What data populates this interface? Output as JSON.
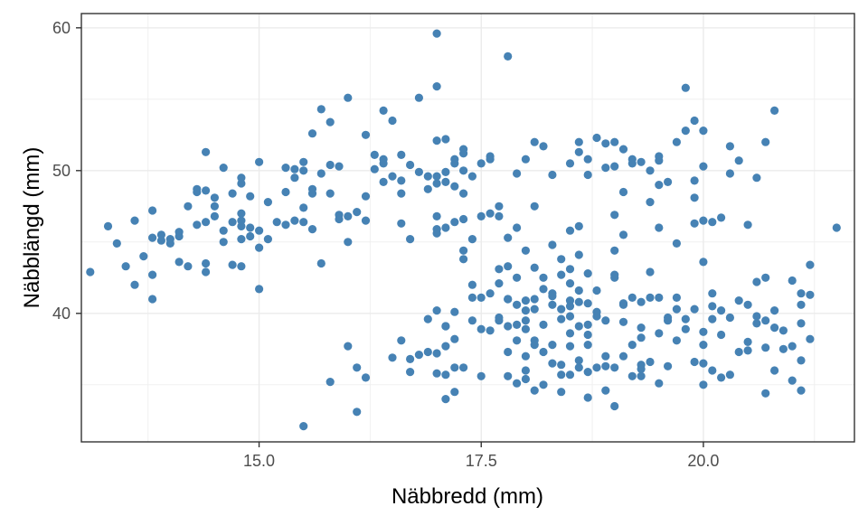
{
  "chart_data": {
    "type": "scatter",
    "xlabel": "Näbbredd (mm)",
    "ylabel": "Näbblängd (mm)",
    "xlim": [
      13.0,
      21.7
    ],
    "ylim": [
      31.0,
      61.0
    ],
    "x_ticks": [
      15.0,
      17.5,
      20.0
    ],
    "x_tick_labels": [
      "15.0",
      "17.5",
      "20.0"
    ],
    "y_ticks": [
      40,
      50,
      60
    ],
    "y_tick_labels": [
      "40",
      "50",
      "60"
    ],
    "grid": true,
    "legend": "none",
    "point_color": "#4682b4",
    "points": [
      [
        13.1,
        42.9
      ],
      [
        13.3,
        46.1
      ],
      [
        13.4,
        44.9
      ],
      [
        13.5,
        43.3
      ],
      [
        13.6,
        42.0
      ],
      [
        13.6,
        46.5
      ],
      [
        13.7,
        44.0
      ],
      [
        13.8,
        41.0
      ],
      [
        13.8,
        42.7
      ],
      [
        13.8,
        45.3
      ],
      [
        13.8,
        47.2
      ],
      [
        13.9,
        45.1
      ],
      [
        13.9,
        45.5
      ],
      [
        14.0,
        44.9
      ],
      [
        14.0,
        45.2
      ],
      [
        14.1,
        43.6
      ],
      [
        14.1,
        45.4
      ],
      [
        14.1,
        45.7
      ],
      [
        14.2,
        43.3
      ],
      [
        14.2,
        47.5
      ],
      [
        14.3,
        46.2
      ],
      [
        14.3,
        48.5
      ],
      [
        14.3,
        48.7
      ],
      [
        14.4,
        42.9
      ],
      [
        14.4,
        43.5
      ],
      [
        14.4,
        46.4
      ],
      [
        14.4,
        51.3
      ],
      [
        14.5,
        46.8
      ],
      [
        14.5,
        47.5
      ],
      [
        14.5,
        48.1
      ],
      [
        14.6,
        45.0
      ],
      [
        14.6,
        45.8
      ],
      [
        14.6,
        50.2
      ],
      [
        14.7,
        43.4
      ],
      [
        14.7,
        46.4
      ],
      [
        14.7,
        48.4
      ],
      [
        14.8,
        43.3
      ],
      [
        14.8,
        45.2
      ],
      [
        14.8,
        46.1
      ],
      [
        14.8,
        46.5
      ],
      [
        14.8,
        47.0
      ],
      [
        14.8,
        49.1
      ],
      [
        14.9,
        45.4
      ],
      [
        14.9,
        46.0
      ],
      [
        14.9,
        48.2
      ],
      [
        15.0,
        41.7
      ],
      [
        15.0,
        44.6
      ],
      [
        15.0,
        45.8
      ],
      [
        15.1,
        45.2
      ],
      [
        15.1,
        47.8
      ],
      [
        15.2,
        46.4
      ],
      [
        15.3,
        46.2
      ],
      [
        15.3,
        48.5
      ],
      [
        15.4,
        46.5
      ],
      [
        15.4,
        49.5
      ],
      [
        15.4,
        50.1
      ],
      [
        15.5,
        46.4
      ],
      [
        15.5,
        47.4
      ],
      [
        15.5,
        50.0
      ],
      [
        15.5,
        50.6
      ],
      [
        15.6,
        45.9
      ],
      [
        15.6,
        48.4
      ],
      [
        15.6,
        48.7
      ],
      [
        15.7,
        43.5
      ],
      [
        15.7,
        49.8
      ],
      [
        15.8,
        48.4
      ],
      [
        15.8,
        50.4
      ],
      [
        15.9,
        46.6
      ],
      [
        15.9,
        46.9
      ],
      [
        15.9,
        50.3
      ],
      [
        16.0,
        45.0
      ],
      [
        16.0,
        46.8
      ],
      [
        16.1,
        47.1
      ],
      [
        16.2,
        46.5
      ],
      [
        16.2,
        48.2
      ],
      [
        16.2,
        52.5
      ],
      [
        16.3,
        50.1
      ],
      [
        16.4,
        49.2
      ],
      [
        16.4,
        50.5
      ],
      [
        16.4,
        50.8
      ],
      [
        16.4,
        54.2
      ],
      [
        16.5,
        49.6
      ],
      [
        16.5,
        53.5
      ],
      [
        16.6,
        46.3
      ],
      [
        16.6,
        48.4
      ],
      [
        16.6,
        49.3
      ],
      [
        16.7,
        45.2
      ],
      [
        16.7,
        50.4
      ],
      [
        16.8,
        49.9
      ],
      [
        16.8,
        55.1
      ],
      [
        16.9,
        48.7
      ],
      [
        16.9,
        49.6
      ],
      [
        17.0,
        46.8
      ],
      [
        17.0,
        49.1
      ],
      [
        17.0,
        49.6
      ],
      [
        17.1,
        49.2
      ],
      [
        17.1,
        49.9
      ],
      [
        17.2,
        48.9
      ],
      [
        17.3,
        48.4
      ],
      [
        17.3,
        51.2
      ],
      [
        17.3,
        51.5
      ],
      [
        17.4,
        45.2
      ],
      [
        17.5,
        46.8
      ],
      [
        17.6,
        47.0
      ],
      [
        17.6,
        51.0
      ],
      [
        17.7,
        46.8
      ],
      [
        17.7,
        47.5
      ],
      [
        17.7,
        42.1
      ],
      [
        17.8,
        43.3
      ],
      [
        17.8,
        41.0
      ],
      [
        17.9,
        42.5
      ],
      [
        17.9,
        49.8
      ],
      [
        18.0,
        36.0
      ],
      [
        18.0,
        37.0
      ],
      [
        18.0,
        39.5
      ],
      [
        18.0,
        40.9
      ],
      [
        18.1,
        38.1
      ],
      [
        18.1,
        41.0
      ],
      [
        18.1,
        47.5
      ],
      [
        18.2,
        37.3
      ],
      [
        18.2,
        39.2
      ],
      [
        18.2,
        42.5
      ],
      [
        18.3,
        36.5
      ],
      [
        18.3,
        40.6
      ],
      [
        18.3,
        41.4
      ],
      [
        18.4,
        35.7
      ],
      [
        18.4,
        36.4
      ],
      [
        18.4,
        39.6
      ],
      [
        18.4,
        40.3
      ],
      [
        18.5,
        35.7
      ],
      [
        18.5,
        38.6
      ],
      [
        18.5,
        39.8
      ],
      [
        18.5,
        40.5
      ],
      [
        18.5,
        45.8
      ],
      [
        18.6,
        36.2
      ],
      [
        18.6,
        39.1
      ],
      [
        18.6,
        40.8
      ],
      [
        18.6,
        41.6
      ],
      [
        18.6,
        46.1
      ],
      [
        18.6,
        52.0
      ],
      [
        18.7,
        34.1
      ],
      [
        18.7,
        35.9
      ],
      [
        18.7,
        37.8
      ],
      [
        18.7,
        39.2
      ],
      [
        18.8,
        36.2
      ],
      [
        18.8,
        40.1
      ],
      [
        18.8,
        52.3
      ],
      [
        18.9,
        34.6
      ],
      [
        18.9,
        36.3
      ],
      [
        18.9,
        39.5
      ],
      [
        19.0,
        36.2
      ],
      [
        19.0,
        42.5
      ],
      [
        19.0,
        42.7
      ],
      [
        19.0,
        44.4
      ],
      [
        19.0,
        46.9
      ],
      [
        19.0,
        50.3
      ],
      [
        19.1,
        39.4
      ],
      [
        19.1,
        40.7
      ],
      [
        19.1,
        45.5
      ],
      [
        19.1,
        48.5
      ],
      [
        19.2,
        35.6
      ],
      [
        19.2,
        41.1
      ],
      [
        19.2,
        50.8
      ],
      [
        19.3,
        35.6
      ],
      [
        19.3,
        36.4
      ],
      [
        19.3,
        38.3
      ],
      [
        19.3,
        39.0
      ],
      [
        19.4,
        41.1
      ],
      [
        19.4,
        42.9
      ],
      [
        19.4,
        47.8
      ],
      [
        19.5,
        38.6
      ],
      [
        19.5,
        41.1
      ],
      [
        19.5,
        46.0
      ],
      [
        19.6,
        39.7
      ],
      [
        19.6,
        39.5
      ],
      [
        19.7,
        38.1
      ],
      [
        19.7,
        41.1
      ],
      [
        19.7,
        44.9
      ],
      [
        19.8,
        38.9
      ],
      [
        19.8,
        39.6
      ],
      [
        19.9,
        36.6
      ],
      [
        19.9,
        40.3
      ],
      [
        19.9,
        46.3
      ],
      [
        19.9,
        48.1
      ],
      [
        20.0,
        35.0
      ],
      [
        20.0,
        36.5
      ],
      [
        20.0,
        38.7
      ],
      [
        20.0,
        43.6
      ],
      [
        20.0,
        46.5
      ],
      [
        20.1,
        36.0
      ],
      [
        20.1,
        39.6
      ],
      [
        20.1,
        40.5
      ],
      [
        20.1,
        41.4
      ],
      [
        20.1,
        46.4
      ],
      [
        20.2,
        35.5
      ],
      [
        20.2,
        38.5
      ],
      [
        20.2,
        46.7
      ],
      [
        20.3,
        35.7
      ],
      [
        20.3,
        39.7
      ],
      [
        20.3,
        49.8
      ],
      [
        20.4,
        37.3
      ],
      [
        20.4,
        40.9
      ],
      [
        20.4,
        50.7
      ],
      [
        20.5,
        38.0
      ],
      [
        20.5,
        40.6
      ],
      [
        20.5,
        46.2
      ],
      [
        20.6,
        39.8
      ],
      [
        20.6,
        42.2
      ],
      [
        20.6,
        49.5
      ],
      [
        20.7,
        34.4
      ],
      [
        20.7,
        37.6
      ],
      [
        20.7,
        39.5
      ],
      [
        20.8,
        36.0
      ],
      [
        20.8,
        39.0
      ],
      [
        20.8,
        40.2
      ],
      [
        20.9,
        37.5
      ],
      [
        20.9,
        38.8
      ],
      [
        21.0,
        35.3
      ],
      [
        21.0,
        37.7
      ],
      [
        21.0,
        42.3
      ],
      [
        21.1,
        36.7
      ],
      [
        21.1,
        40.6
      ],
      [
        21.2,
        38.2
      ],
      [
        21.2,
        41.3
      ],
      [
        21.2,
        43.4
      ],
      [
        21.5,
        46.0
      ],
      [
        16.0,
        37.7
      ],
      [
        15.8,
        35.2
      ],
      [
        16.1,
        36.2
      ],
      [
        16.2,
        35.5
      ],
      [
        16.1,
        33.1
      ],
      [
        15.5,
        32.1
      ],
      [
        16.5,
        36.9
      ],
      [
        16.6,
        38.1
      ],
      [
        16.7,
        35.9
      ],
      [
        16.7,
        36.8
      ],
      [
        16.8,
        37.1
      ],
      [
        16.9,
        37.3
      ],
      [
        16.9,
        39.6
      ],
      [
        17.0,
        35.8
      ],
      [
        17.0,
        37.2
      ],
      [
        17.0,
        40.2
      ],
      [
        17.1,
        34.0
      ],
      [
        17.1,
        35.7
      ],
      [
        17.1,
        37.7
      ],
      [
        17.1,
        39.1
      ],
      [
        17.2,
        34.5
      ],
      [
        17.2,
        36.2
      ],
      [
        17.2,
        38.2
      ],
      [
        17.2,
        40.1
      ],
      [
        17.3,
        36.2
      ],
      [
        17.4,
        39.5
      ],
      [
        17.5,
        35.6
      ],
      [
        17.5,
        38.9
      ],
      [
        17.5,
        41.1
      ],
      [
        17.6,
        38.8
      ],
      [
        17.7,
        39.7
      ],
      [
        17.8,
        35.6
      ],
      [
        17.8,
        37.3
      ],
      [
        17.8,
        39.1
      ],
      [
        17.8,
        41.0
      ],
      [
        17.9,
        35.1
      ],
      [
        17.9,
        38.1
      ],
      [
        17.9,
        39.2
      ],
      [
        18.0,
        35.4
      ],
      [
        18.0,
        38.9
      ],
      [
        18.1,
        34.6
      ],
      [
        18.1,
        37.8
      ],
      [
        18.1,
        40.3
      ],
      [
        18.2,
        35.0
      ],
      [
        18.3,
        37.8
      ],
      [
        18.4,
        34.5
      ],
      [
        18.5,
        37.7
      ],
      [
        18.6,
        36.7
      ],
      [
        18.7,
        38.5
      ],
      [
        18.9,
        37.0
      ],
      [
        19.0,
        33.5
      ],
      [
        19.1,
        37.0
      ],
      [
        19.2,
        37.8
      ],
      [
        19.3,
        36.1
      ],
      [
        19.4,
        36.6
      ],
      [
        19.5,
        35.1
      ],
      [
        19.6,
        36.3
      ],
      [
        17.0,
        45.6
      ],
      [
        17.0,
        45.9
      ],
      [
        17.1,
        46.0
      ],
      [
        17.2,
        46.4
      ],
      [
        17.3,
        46.6
      ],
      [
        17.3,
        44.4
      ],
      [
        17.3,
        43.8
      ],
      [
        17.4,
        42.0
      ],
      [
        17.6,
        41.4
      ],
      [
        17.7,
        43.1
      ],
      [
        17.8,
        45.3
      ],
      [
        17.9,
        46.0
      ],
      [
        18.0,
        44.4
      ],
      [
        18.1,
        43.2
      ],
      [
        18.2,
        41.7
      ],
      [
        18.3,
        44.8
      ],
      [
        18.4,
        42.7
      ],
      [
        18.4,
        43.8
      ],
      [
        18.5,
        42.1
      ],
      [
        18.5,
        43.1
      ],
      [
        18.6,
        44.1
      ],
      [
        18.7,
        42.8
      ],
      [
        18.8,
        41.6
      ],
      [
        17.0,
        59.6
      ],
      [
        17.0,
        55.9
      ],
      [
        17.8,
        58.0
      ],
      [
        17.0,
        52.1
      ],
      [
        17.1,
        52.2
      ],
      [
        17.2,
        50.8
      ],
      [
        17.2,
        50.5
      ],
      [
        17.4,
        49.6
      ],
      [
        17.5,
        50.5
      ],
      [
        18.0,
        50.8
      ],
      [
        18.1,
        52.0
      ],
      [
        18.2,
        51.7
      ],
      [
        18.3,
        49.7
      ],
      [
        18.5,
        50.5
      ],
      [
        18.6,
        51.3
      ],
      [
        18.7,
        50.8
      ],
      [
        18.9,
        51.9
      ],
      [
        19.0,
        52.0
      ],
      [
        19.1,
        51.5
      ],
      [
        19.2,
        50.5
      ],
      [
        19.3,
        50.6
      ],
      [
        19.4,
        50.0
      ],
      [
        19.5,
        50.7
      ],
      [
        19.6,
        49.2
      ],
      [
        19.7,
        52.0
      ],
      [
        19.8,
        52.8
      ],
      [
        19.9,
        53.5
      ],
      [
        20.0,
        52.8
      ],
      [
        20.3,
        51.7
      ],
      [
        20.7,
        52.0
      ],
      [
        20.8,
        54.2
      ],
      [
        19.8,
        55.8
      ],
      [
        19.5,
        49.0
      ],
      [
        19.9,
        49.3
      ],
      [
        20.0,
        50.3
      ],
      [
        19.5,
        51.0
      ],
      [
        18.9,
        50.2
      ],
      [
        18.7,
        49.7
      ],
      [
        17.6,
        50.8
      ],
      [
        17.3,
        50.0
      ],
      [
        17.1,
        39.1
      ],
      [
        17.4,
        41.1
      ],
      [
        17.7,
        39.5
      ],
      [
        17.9,
        40.6
      ],
      [
        18.0,
        40.2
      ],
      [
        18.3,
        41.2
      ],
      [
        18.5,
        40.9
      ],
      [
        18.7,
        40.7
      ],
      [
        18.8,
        39.8
      ],
      [
        19.1,
        40.6
      ],
      [
        19.3,
        40.8
      ],
      [
        19.7,
        40.3
      ],
      [
        20.0,
        37.8
      ],
      [
        20.2,
        40.2
      ],
      [
        20.5,
        37.4
      ],
      [
        20.6,
        39.3
      ],
      [
        20.7,
        42.5
      ],
      [
        21.1,
        34.6
      ],
      [
        21.1,
        39.3
      ],
      [
        21.1,
        41.4
      ],
      [
        16.0,
        55.1
      ],
      [
        15.7,
        54.3
      ],
      [
        15.8,
        53.4
      ],
      [
        15.6,
        52.6
      ],
      [
        16.3,
        51.1
      ],
      [
        16.6,
        51.1
      ],
      [
        15.3,
        50.2
      ],
      [
        15.0,
        50.6
      ],
      [
        14.8,
        49.5
      ],
      [
        14.4,
        48.6
      ]
    ]
  }
}
